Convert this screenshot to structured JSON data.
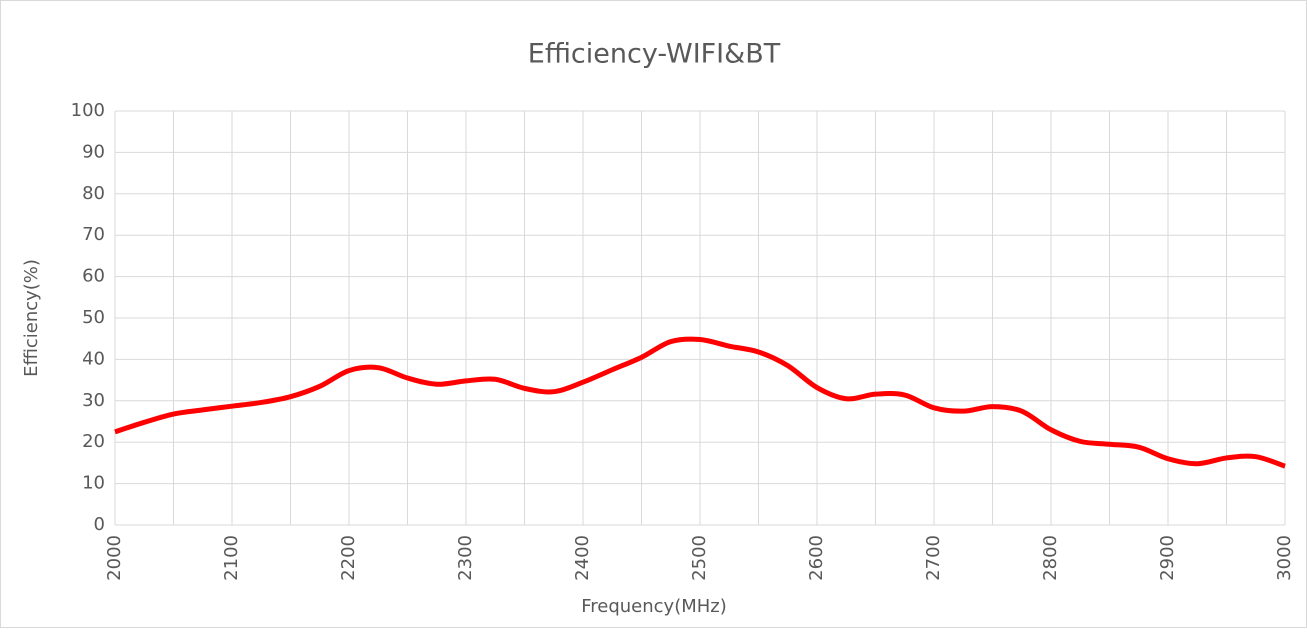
{
  "chart_data": {
    "type": "line",
    "title": "Efficiency-WIFI&BT",
    "xlabel": "Frequency(MHz)",
    "ylabel": "Efficiency(%)",
    "x": [
      2000,
      2025,
      2050,
      2075,
      2100,
      2125,
      2150,
      2175,
      2200,
      2225,
      2250,
      2275,
      2300,
      2325,
      2350,
      2375,
      2400,
      2425,
      2450,
      2475,
      2500,
      2525,
      2550,
      2575,
      2600,
      2625,
      2650,
      2675,
      2700,
      2725,
      2750,
      2775,
      2800,
      2825,
      2850,
      2875,
      2900,
      2925,
      2950,
      2975,
      3000
    ],
    "series": [
      {
        "name": "Efficiency",
        "color": "#ff0000",
        "values": [
          22.5,
          24.8,
          26.8,
          27.8,
          28.7,
          29.6,
          31,
          33.5,
          37.3,
          38,
          35.5,
          34,
          34.8,
          35.2,
          33,
          32.2,
          34.5,
          37.5,
          40.5,
          44.3,
          44.8,
          43.2,
          41.8,
          38.5,
          33.2,
          30.5,
          31.6,
          31.4,
          28.3,
          27.5,
          28.6,
          27.5,
          23,
          20.2,
          19.5,
          18.8,
          16,
          14.8,
          16.2,
          16.5,
          14.2
        ]
      }
    ],
    "xlim": [
      2000,
      3000
    ],
    "xticks": [
      2000,
      2100,
      2200,
      2300,
      2400,
      2500,
      2600,
      2700,
      2800,
      2900,
      3000
    ],
    "xminorticks": [
      2050,
      2150,
      2250,
      2350,
      2450,
      2550,
      2650,
      2750,
      2850,
      2950
    ],
    "ylim": [
      0,
      100
    ],
    "yticks": [
      0,
      10,
      20,
      30,
      40,
      50,
      60,
      70,
      80,
      90,
      100
    ],
    "grid": true
  }
}
